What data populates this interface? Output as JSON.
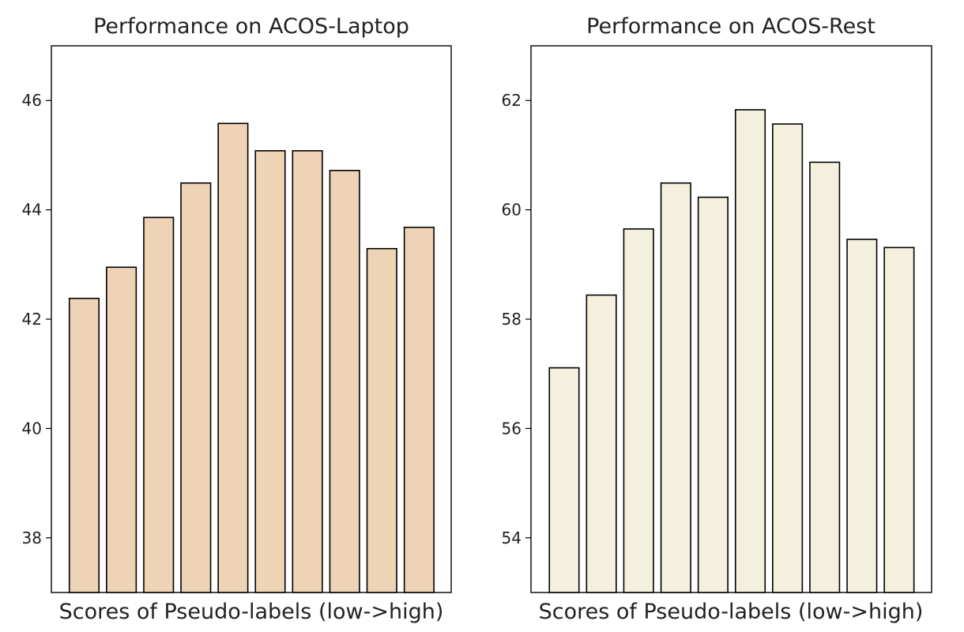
{
  "chart_data": [
    {
      "type": "bar",
      "title": "Performance on ACOS-Laptop",
      "xlabel": "Scores of Pseudo-labels (low->high)",
      "ylabel": "",
      "ylim": [
        37,
        47
      ],
      "yticks": [
        38,
        40,
        42,
        44,
        46
      ],
      "xticks": [],
      "values": [
        42.38,
        42.95,
        43.86,
        44.49,
        45.58,
        45.08,
        45.08,
        44.72,
        43.29,
        43.68
      ],
      "bar_color": "#efd3b6",
      "edge_color": "#000000",
      "grid": false,
      "legend": "none"
    },
    {
      "type": "bar",
      "title": "Performance on ACOS-Rest",
      "xlabel": "Scores of Pseudo-labels (low->high)",
      "ylabel": "",
      "ylim": [
        53,
        63
      ],
      "yticks": [
        54,
        56,
        58,
        60,
        62
      ],
      "xticks": [],
      "values": [
        57.11,
        58.44,
        59.65,
        60.49,
        60.23,
        61.83,
        61.57,
        60.87,
        59.46,
        59.31
      ],
      "bar_color": "#f4f0de",
      "edge_color": "#000000",
      "grid": false,
      "legend": "none"
    }
  ]
}
